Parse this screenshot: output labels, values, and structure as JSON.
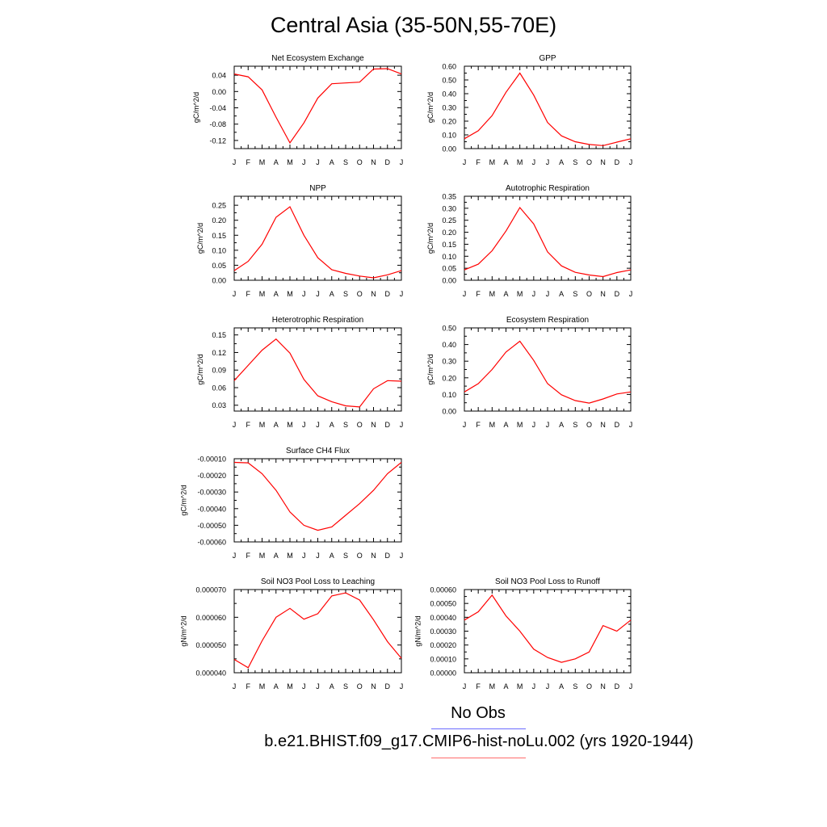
{
  "title": "Central Asia (35-50N,55-70E)",
  "legend": {
    "obs_label": "No Obs",
    "obs_color": "#6b6bff",
    "model_label": "b.e21.BHIST.f09_g17.CMIP6-hist-noLu.002 (yrs 1920-1944)",
    "model_color": "#ff6b6b"
  },
  "line_color": "#ff0000",
  "chart_data": [
    {
      "type": "line",
      "title": "Net Ecosystem Exchange",
      "ylabel": "gC/m^2/d",
      "categories": [
        "J",
        "F",
        "M",
        "A",
        "M",
        "J",
        "J",
        "A",
        "S",
        "O",
        "N",
        "D",
        "J"
      ],
      "ylim": [
        -0.14,
        0.062
      ],
      "yticks": [
        0.04,
        0.0,
        -0.04,
        -0.08,
        -0.12
      ],
      "ytick_labels": [
        "0.04",
        "0.00",
        "-0.04",
        "-0.08",
        "-0.12"
      ],
      "series": [
        {
          "values": [
            0.043,
            0.036,
            0.004,
            -0.063,
            -0.126,
            -0.077,
            -0.016,
            0.019,
            0.021,
            0.023,
            0.055,
            0.056,
            0.043
          ]
        }
      ]
    },
    {
      "type": "line",
      "title": "GPP",
      "ylabel": "gC/m^2/d",
      "categories": [
        "J",
        "F",
        "M",
        "A",
        "M",
        "J",
        "J",
        "A",
        "S",
        "O",
        "N",
        "D",
        "J"
      ],
      "ylim": [
        0,
        0.6
      ],
      "yticks": [
        0.0,
        0.1,
        0.2,
        0.3,
        0.4,
        0.5,
        0.6
      ],
      "ytick_labels": [
        "0.00",
        "0.10",
        "0.20",
        "0.30",
        "0.40",
        "0.50",
        "0.60"
      ],
      "series": [
        {
          "values": [
            0.072,
            0.13,
            0.24,
            0.41,
            0.55,
            0.39,
            0.19,
            0.093,
            0.05,
            0.03,
            0.022,
            0.047,
            0.072
          ]
        }
      ]
    },
    {
      "type": "line",
      "title": "NPP",
      "ylabel": "gC/m^2/d",
      "categories": [
        "J",
        "F",
        "M",
        "A",
        "M",
        "J",
        "J",
        "A",
        "S",
        "O",
        "N",
        "D",
        "J"
      ],
      "ylim": [
        0,
        0.28
      ],
      "yticks": [
        0.0,
        0.05,
        0.1,
        0.15,
        0.2,
        0.25
      ],
      "ytick_labels": [
        "0.00",
        "0.05",
        "0.10",
        "0.15",
        "0.20",
        "0.25"
      ],
      "series": [
        {
          "values": [
            0.032,
            0.063,
            0.12,
            0.21,
            0.245,
            0.15,
            0.075,
            0.035,
            0.023,
            0.014,
            0.008,
            0.018,
            0.032
          ]
        }
      ]
    },
    {
      "type": "line",
      "title": "Autotrophic Respiration",
      "ylabel": "gC/m^2/d",
      "categories": [
        "J",
        "F",
        "M",
        "A",
        "M",
        "J",
        "J",
        "A",
        "S",
        "O",
        "N",
        "D",
        "J"
      ],
      "ylim": [
        0,
        0.35
      ],
      "yticks": [
        0.0,
        0.05,
        0.1,
        0.15,
        0.2,
        0.25,
        0.3,
        0.35
      ],
      "ytick_labels": [
        "0.00",
        "0.05",
        "0.10",
        "0.15",
        "0.20",
        "0.25",
        "0.30",
        "0.35"
      ],
      "series": [
        {
          "values": [
            0.043,
            0.067,
            0.123,
            0.205,
            0.303,
            0.235,
            0.118,
            0.06,
            0.033,
            0.022,
            0.015,
            0.032,
            0.043
          ]
        }
      ]
    },
    {
      "type": "line",
      "title": "Heterotrophic Respiration",
      "ylabel": "gC/m^2/d",
      "categories": [
        "J",
        "F",
        "M",
        "A",
        "M",
        "J",
        "J",
        "A",
        "S",
        "O",
        "N",
        "D",
        "J"
      ],
      "ylim": [
        0.02,
        0.162
      ],
      "yticks": [
        0.03,
        0.06,
        0.09,
        0.12,
        0.15
      ],
      "ytick_labels": [
        "0.03",
        "0.06",
        "0.09",
        "0.12",
        "0.15"
      ],
      "series": [
        {
          "values": [
            0.072,
            0.098,
            0.124,
            0.143,
            0.119,
            0.074,
            0.046,
            0.036,
            0.029,
            0.027,
            0.058,
            0.072,
            0.071
          ]
        }
      ]
    },
    {
      "type": "line",
      "title": "Ecosystem Respiration",
      "ylabel": "gC/m^2/d",
      "categories": [
        "J",
        "F",
        "M",
        "A",
        "M",
        "J",
        "J",
        "A",
        "S",
        "O",
        "N",
        "D",
        "J"
      ],
      "ylim": [
        0,
        0.5
      ],
      "yticks": [
        0.0,
        0.1,
        0.2,
        0.3,
        0.4,
        0.5
      ],
      "ytick_labels": [
        "0.00",
        "0.10",
        "0.20",
        "0.30",
        "0.40",
        "0.50"
      ],
      "series": [
        {
          "values": [
            0.115,
            0.165,
            0.25,
            0.355,
            0.42,
            0.305,
            0.165,
            0.098,
            0.063,
            0.048,
            0.073,
            0.103,
            0.115
          ]
        }
      ]
    },
    {
      "type": "line",
      "title": "Surface CH4 Flux",
      "ylabel": "gC/m^2/d",
      "categories": [
        "J",
        "F",
        "M",
        "A",
        "M",
        "J",
        "J",
        "A",
        "S",
        "O",
        "N",
        "D",
        "J"
      ],
      "ylim": [
        -0.0006,
        -0.0001
      ],
      "yticks": [
        -0.0001,
        -0.0002,
        -0.0003,
        -0.0004,
        -0.0005,
        -0.0006
      ],
      "ytick_labels": [
        "-0.00010",
        "-0.00020",
        "-0.00030",
        "-0.00040",
        "-0.00050",
        "-0.00060"
      ],
      "series": [
        {
          "values": [
            -0.000122,
            -0.000125,
            -0.00019,
            -0.00029,
            -0.00042,
            -0.0005,
            -0.00053,
            -0.00051,
            -0.00044,
            -0.00037,
            -0.00029,
            -0.00019,
            -0.000122
          ]
        }
      ]
    },
    {
      "type": "line",
      "title": "Soil NO3 Pool Loss to Leaching",
      "ylabel": "gN/m^2/d",
      "categories": [
        "J",
        "F",
        "M",
        "A",
        "M",
        "J",
        "J",
        "A",
        "S",
        "O",
        "N",
        "D",
        "J"
      ],
      "ylim": [
        4e-05,
        7e-05
      ],
      "yticks": [
        4e-05,
        5e-05,
        6e-05,
        7e-05
      ],
      "ytick_labels": [
        "0.000040",
        "0.000050",
        "0.000060",
        "0.000070"
      ],
      "series": [
        {
          "values": [
            4.48e-05,
            4.18e-05,
            5.15e-05,
            6e-05,
            6.32e-05,
            5.93e-05,
            6.13e-05,
            6.77e-05,
            6.88e-05,
            6.62e-05,
            5.91e-05,
            5.12e-05,
            4.52e-05
          ]
        }
      ]
    },
    {
      "type": "line",
      "title": "Soil NO3 Pool Loss to Runoff",
      "ylabel": "gN/m^2/d",
      "categories": [
        "J",
        "F",
        "M",
        "A",
        "M",
        "J",
        "J",
        "A",
        "S",
        "O",
        "N",
        "D",
        "J"
      ],
      "ylim": [
        0,
        0.0006
      ],
      "yticks": [
        0.0,
        0.0001,
        0.0002,
        0.0003,
        0.0004,
        0.0005,
        0.0006
      ],
      "ytick_labels": [
        "0.00000",
        "0.00010",
        "0.00020",
        "0.00030",
        "0.00040",
        "0.00050",
        "0.00060"
      ],
      "series": [
        {
          "values": [
            0.00038,
            0.00044,
            0.00056,
            0.00041,
            0.0003,
            0.00017,
            0.00011,
            7.5e-05,
            0.0001,
            0.00015,
            0.00034,
            0.0003,
            0.00038
          ]
        }
      ]
    }
  ]
}
